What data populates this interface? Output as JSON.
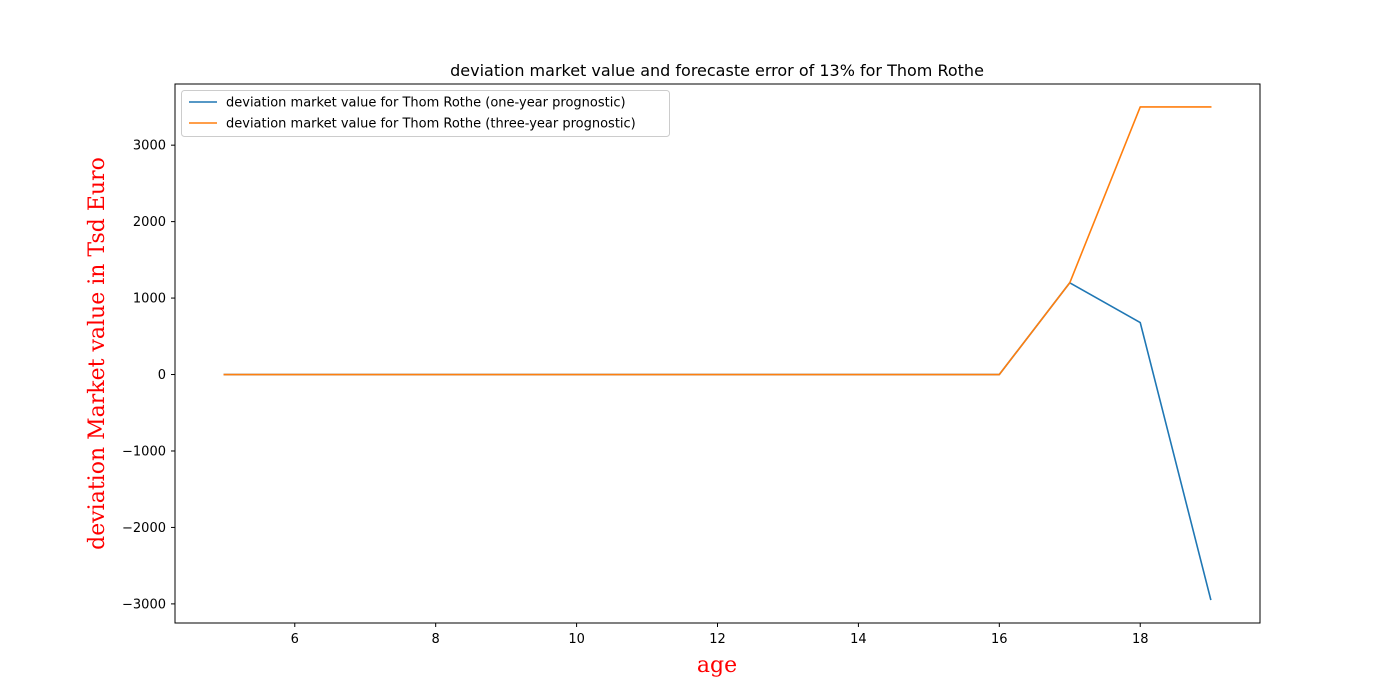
{
  "chart_data": {
    "type": "line",
    "title": "deviation market value and forecaste error of 13% for Thom Rothe",
    "xlabel": "age",
    "ylabel": "deviation Market value in Tsd Euro",
    "x": [
      5,
      6,
      7,
      8,
      9,
      10,
      11,
      12,
      13,
      14,
      15,
      16,
      17,
      18,
      19
    ],
    "xlim": [
      4.3,
      19.7
    ],
    "ylim": [
      -3250,
      3800
    ],
    "xticks": [
      6,
      8,
      10,
      12,
      14,
      16,
      18
    ],
    "yticks": [
      -3000,
      -2000,
      -1000,
      0,
      1000,
      2000,
      3000
    ],
    "xtick_labels": [
      "6",
      "8",
      "10",
      "12",
      "14",
      "16",
      "18"
    ],
    "ytick_labels": [
      "−3000",
      "−2000",
      "−1000",
      "0",
      "1000",
      "2000",
      "3000"
    ],
    "grid": false,
    "legend_position": "top-left",
    "series": [
      {
        "name": "deviation market value for Thom Rothe (one-year prognostic)",
        "color": "#1f77b4",
        "values": [
          0,
          0,
          0,
          0,
          0,
          0,
          0,
          0,
          0,
          0,
          0,
          0,
          1200,
          680,
          -2940
        ]
      },
      {
        "name": "deviation market value for Thom Rothe (three-year prognostic)",
        "color": "#ff7f0e",
        "values": [
          0,
          0,
          0,
          0,
          0,
          0,
          0,
          0,
          0,
          0,
          0,
          0,
          1200,
          3500,
          3500
        ]
      }
    ]
  }
}
